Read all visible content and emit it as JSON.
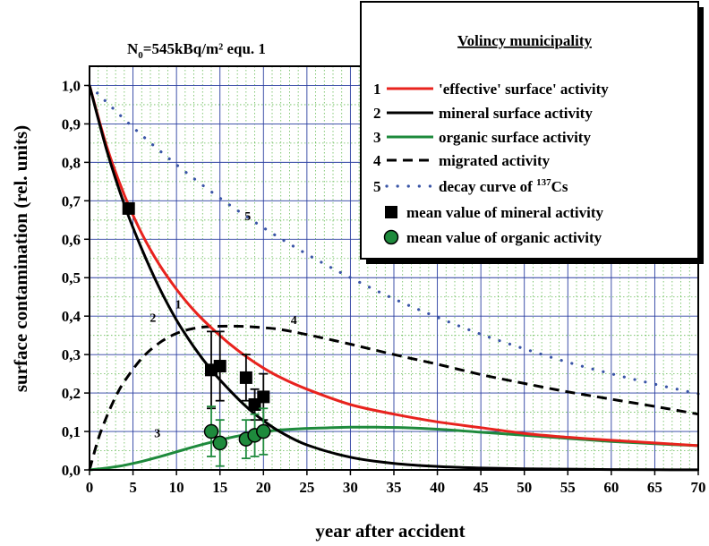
{
  "chart_data": {
    "type": "line",
    "annotation": {
      "main": "N",
      "sub": "0",
      "rest": "=545kBq/m² equ. 1"
    },
    "xlabel": "year after accident",
    "ylabel": "surface contamination (rel. units)",
    "xlim": [
      0,
      70
    ],
    "ylim": [
      0,
      1.05
    ],
    "x_ticks": [
      0,
      5,
      10,
      15,
      20,
      25,
      30,
      35,
      40,
      45,
      50,
      55,
      60,
      65,
      70
    ],
    "y_ticks": [
      "0,0",
      "0,1",
      "0,2",
      "0,3",
      "0,4",
      "0,5",
      "0,6",
      "0,7",
      "0,8",
      "0,9",
      "1,0"
    ],
    "grid": true,
    "legend_position": "top-right",
    "legend_title": "Volincy municipality",
    "series": [
      {
        "id": "s1",
        "number": "1",
        "name": "'effective' surface' activity",
        "color": "#e8231e",
        "style": "solid",
        "x": [
          0,
          2,
          4,
          6,
          8,
          10,
          12,
          14,
          16,
          18,
          20,
          22,
          25,
          30,
          35,
          40,
          45,
          50,
          55,
          60,
          65,
          70
        ],
        "y": [
          1.0,
          0.84,
          0.715,
          0.615,
          0.535,
          0.47,
          0.415,
          0.37,
          0.33,
          0.295,
          0.265,
          0.24,
          0.21,
          0.17,
          0.145,
          0.125,
          0.11,
          0.095,
          0.085,
          0.077,
          0.07,
          0.063
        ]
      },
      {
        "id": "s2",
        "number": "2",
        "name": "mineral surface activity",
        "color": "#000000",
        "style": "solid",
        "x": [
          0,
          2,
          4,
          6,
          8,
          10,
          12,
          14,
          16,
          18,
          20,
          22,
          25,
          30,
          35,
          40,
          45,
          50,
          55,
          60,
          65,
          70
        ],
        "y": [
          1.0,
          0.83,
          0.69,
          0.575,
          0.475,
          0.39,
          0.32,
          0.26,
          0.21,
          0.165,
          0.128,
          0.098,
          0.065,
          0.033,
          0.017,
          0.009,
          0.005,
          0.003,
          0.002,
          0.001,
          0.0005,
          0.0003
        ]
      },
      {
        "id": "s3",
        "number": "3",
        "name": "organic surface activity",
        "color": "#1e8a3c",
        "style": "solid",
        "x": [
          0,
          2,
          4,
          6,
          8,
          10,
          12,
          14,
          16,
          18,
          20,
          22,
          25,
          28,
          30,
          33,
          36,
          40,
          45,
          50,
          55,
          60,
          65,
          70
        ],
        "y": [
          0.0,
          0.005,
          0.012,
          0.022,
          0.034,
          0.047,
          0.06,
          0.072,
          0.083,
          0.092,
          0.099,
          0.104,
          0.108,
          0.11,
          0.111,
          0.111,
          0.11,
          0.106,
          0.098,
          0.09,
          0.082,
          0.074,
          0.068,
          0.063
        ]
      },
      {
        "id": "s4",
        "number": "4",
        "name": "migrated activity",
        "color": "#000000",
        "style": "dashed",
        "x": [
          0,
          1,
          2,
          3,
          4,
          6,
          8,
          10,
          12,
          14,
          16,
          18,
          20,
          22,
          25,
          30,
          35,
          40,
          45,
          50,
          55,
          60,
          65,
          70
        ],
        "y": [
          0.0,
          0.08,
          0.14,
          0.19,
          0.23,
          0.29,
          0.33,
          0.355,
          0.368,
          0.373,
          0.374,
          0.373,
          0.37,
          0.365,
          0.352,
          0.327,
          0.3,
          0.275,
          0.248,
          0.225,
          0.203,
          0.184,
          0.165,
          0.145
        ]
      },
      {
        "id": "s5",
        "number": "5",
        "name_prefix": "decay curve of ",
        "name_sup": "137",
        "name_suffix": "Cs",
        "color": "#3a55a6",
        "style": "dotted",
        "x": [
          0,
          5,
          10,
          15,
          20,
          25,
          30,
          35,
          40,
          45,
          50,
          55,
          60,
          65,
          70
        ],
        "y": [
          1.0,
          0.891,
          0.794,
          0.707,
          0.63,
          0.561,
          0.5,
          0.445,
          0.397,
          0.353,
          0.315,
          0.28,
          0.25,
          0.223,
          0.198
        ]
      }
    ],
    "scatter": [
      {
        "id": "m1",
        "name": "mean value of mineral activity",
        "marker": "square",
        "color": "#000000",
        "points": [
          {
            "x": 4.5,
            "y": 0.68,
            "err": 0.0
          },
          {
            "x": 14,
            "y": 0.26,
            "err": 0.1
          },
          {
            "x": 15,
            "y": 0.27,
            "err": 0.09
          },
          {
            "x": 18,
            "y": 0.24,
            "err": 0.06
          },
          {
            "x": 19,
            "y": 0.17,
            "err": 0.04
          },
          {
            "x": 20,
            "y": 0.19,
            "err": 0.06
          }
        ]
      },
      {
        "id": "m2",
        "name": "mean value of organic activity",
        "marker": "circle",
        "color": "#1e8a3c",
        "points": [
          {
            "x": 14,
            "y": 0.1,
            "err": 0.065
          },
          {
            "x": 15,
            "y": 0.07,
            "err": 0.06
          },
          {
            "x": 18,
            "y": 0.08,
            "err": 0.05
          },
          {
            "x": 19,
            "y": 0.09,
            "err": 0.055
          },
          {
            "x": 20,
            "y": 0.1,
            "err": 0.06
          }
        ]
      }
    ],
    "curve_labels": [
      {
        "text": "1",
        "x": 10.2,
        "y": 0.42
      },
      {
        "text": "2",
        "x": 7.3,
        "y": 0.385
      },
      {
        "text": "3",
        "x": 7.8,
        "y": 0.085
      },
      {
        "text": "4",
        "x": 23.5,
        "y": 0.38
      },
      {
        "text": "5",
        "x": 18.2,
        "y": 0.65
      }
    ]
  }
}
